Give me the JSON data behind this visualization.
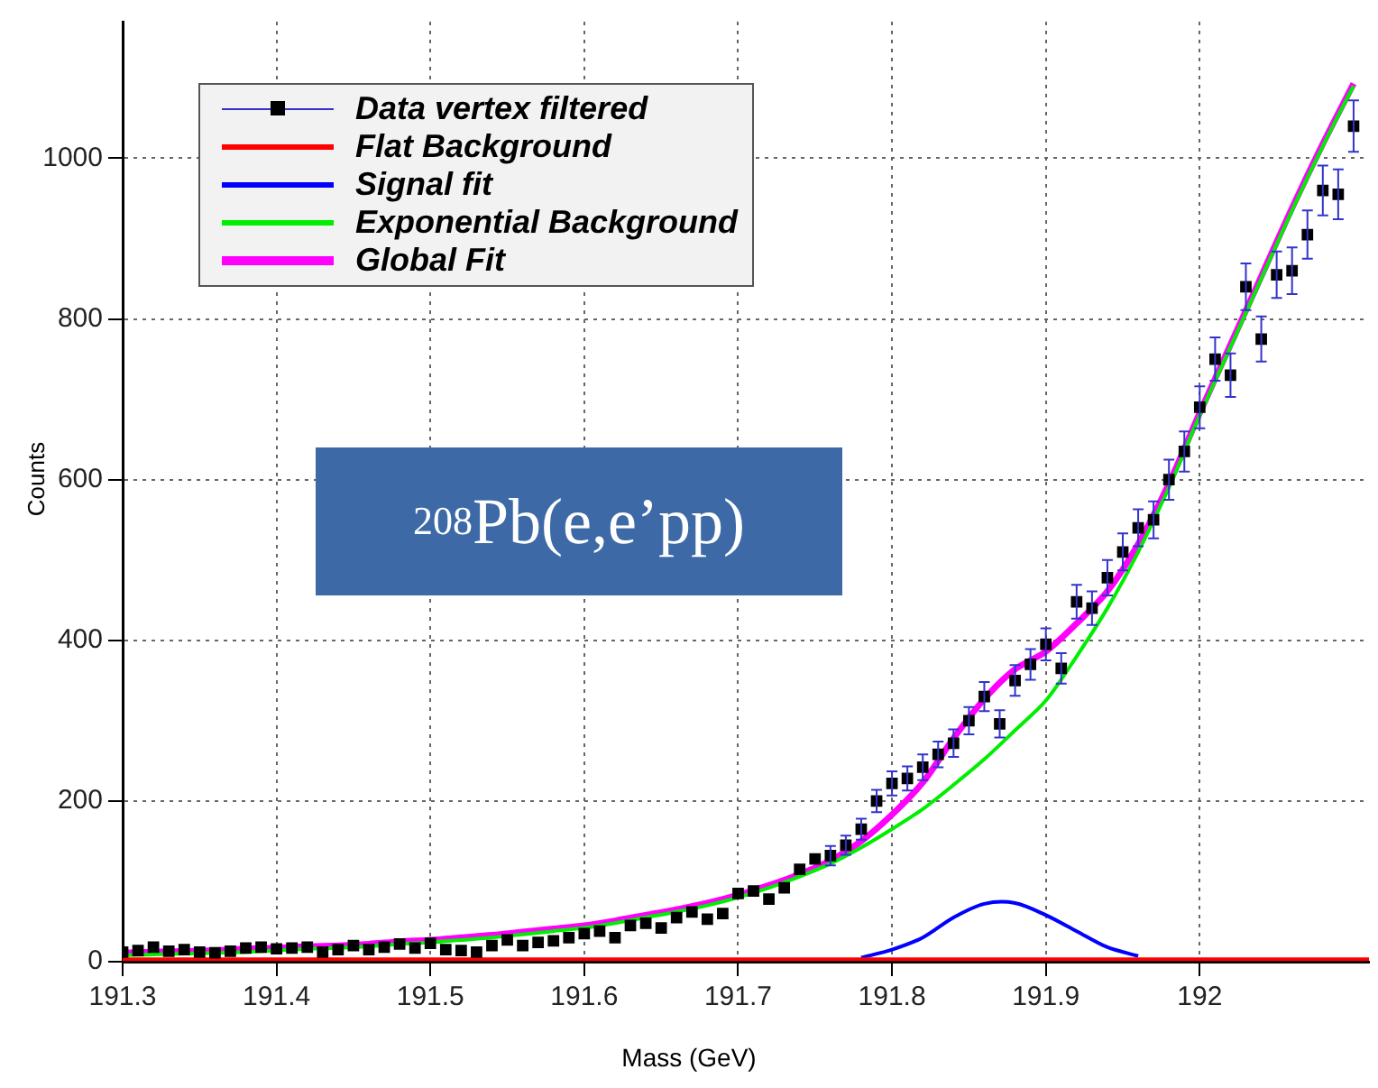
{
  "chart_data": {
    "type": "scatter",
    "xlabel": "Mass (GeV)",
    "ylabel": "Counts",
    "annotations": [
      "$^{208}$Pb(e,e’pp)"
    ],
    "xlim": [
      191.3,
      192.11
    ],
    "xticks": [
      191.3,
      191.4,
      191.5,
      191.6,
      191.7,
      191.8,
      191.9,
      192
    ],
    "ylim": [
      0,
      1170
    ],
    "yticks": [
      0,
      200,
      400,
      600,
      800,
      1000
    ],
    "grid": true,
    "legend": "top left",
    "series": [
      {
        "name": "Data vertex filtered",
        "marker": "square",
        "color": "#000000",
        "x": [
          191.3,
          191.31,
          191.32,
          191.33,
          191.34,
          191.35,
          191.36,
          191.37,
          191.38,
          191.39,
          191.4,
          191.41,
          191.42,
          191.43,
          191.44,
          191.45,
          191.46,
          191.47,
          191.48,
          191.49,
          191.5,
          191.51,
          191.52,
          191.53,
          191.54,
          191.55,
          191.56,
          191.57,
          191.58,
          191.59,
          191.6,
          191.61,
          191.62,
          191.63,
          191.64,
          191.65,
          191.66,
          191.67,
          191.68,
          191.69,
          191.7,
          191.71,
          191.72,
          191.73,
          191.74,
          191.75,
          191.76,
          191.77,
          191.78,
          191.79,
          191.8,
          191.81,
          191.82,
          191.83,
          191.84,
          191.85,
          191.86,
          191.87,
          191.88,
          191.89,
          191.9,
          191.91,
          191.92,
          191.93,
          191.94,
          191.95,
          191.96,
          191.97,
          191.98,
          191.99,
          192.0,
          192.01,
          192.02,
          192.03,
          192.04,
          192.05,
          192.06,
          192.07,
          192.08,
          192.09,
          192.1
        ],
        "values": [
          12,
          14,
          18,
          13,
          15,
          12,
          11,
          13,
          17,
          18,
          16,
          17,
          18,
          12,
          15,
          20,
          15,
          18,
          22,
          17,
          23,
          15,
          14,
          12,
          20,
          27,
          20,
          24,
          26,
          30,
          35,
          38,
          30,
          45,
          48,
          42,
          55,
          62,
          53,
          60,
          85,
          88,
          78,
          92,
          115,
          128,
          132,
          145,
          165,
          200,
          222,
          228,
          242,
          258,
          272,
          300,
          330,
          296,
          350,
          370,
          395,
          365,
          448,
          440,
          478,
          510,
          540,
          550,
          600,
          635,
          690,
          750,
          730,
          840,
          775,
          855,
          860,
          905,
          960,
          955,
          1040
        ],
        "errors": [
          null,
          null,
          null,
          null,
          null,
          null,
          null,
          null,
          null,
          null,
          null,
          null,
          null,
          null,
          null,
          null,
          null,
          null,
          null,
          null,
          null,
          null,
          null,
          null,
          null,
          null,
          null,
          null,
          null,
          null,
          null,
          null,
          null,
          null,
          null,
          null,
          null,
          null,
          null,
          null,
          null,
          null,
          null,
          null,
          null,
          null,
          12,
          12,
          13,
          14,
          15,
          15,
          16,
          16,
          17,
          17,
          18,
          17,
          19,
          19,
          20,
          19,
          21,
          21,
          22,
          23,
          23,
          23,
          25,
          25,
          26,
          27,
          27,
          29,
          28,
          29,
          29,
          30,
          31,
          31,
          32
        ]
      },
      {
        "name": "Flat Background",
        "type": "line",
        "color": "#ff0000",
        "x": [
          191.3,
          192.11
        ],
        "values": [
          3,
          3
        ]
      },
      {
        "name": "Signal fit",
        "type": "line",
        "color": "#0000ff",
        "x": [
          191.78,
          191.8,
          191.82,
          191.84,
          191.86,
          191.88,
          191.9,
          191.92,
          191.94,
          191.96
        ],
        "values": [
          5,
          15,
          30,
          55,
          72,
          73,
          58,
          38,
          18,
          7
        ]
      },
      {
        "name": "Exponential Background",
        "type": "line",
        "color": "#00ee00",
        "x": [
          191.3,
          191.32,
          191.34,
          191.36,
          191.38,
          191.4,
          191.42,
          191.44,
          191.46,
          191.48,
          191.5,
          191.52,
          191.54,
          191.56,
          191.58,
          191.6,
          191.62,
          191.64,
          191.66,
          191.68,
          191.7,
          191.72,
          191.74,
          191.76,
          191.78,
          191.8,
          191.82,
          191.84,
          191.86,
          191.88,
          191.9,
          191.92,
          191.94,
          191.96,
          191.98,
          192.0,
          192.02,
          192.04,
          192.06,
          192.08,
          192.1
        ],
        "values": [
          8,
          9,
          10,
          11,
          12,
          14,
          16,
          17,
          19,
          22,
          24,
          27,
          30,
          34,
          38,
          42,
          48,
          55,
          62,
          70,
          80,
          92,
          106,
          122,
          142,
          165,
          190,
          220,
          252,
          288,
          325,
          380,
          440,
          510,
          590,
          680,
          765,
          850,
          935,
          1015,
          1090
        ]
      },
      {
        "name": "Global Fit",
        "type": "line",
        "color": "#ff00ff",
        "x": [
          191.3,
          191.32,
          191.34,
          191.36,
          191.38,
          191.4,
          191.42,
          191.44,
          191.46,
          191.48,
          191.5,
          191.52,
          191.54,
          191.56,
          191.58,
          191.6,
          191.62,
          191.64,
          191.66,
          191.68,
          191.7,
          191.72,
          191.74,
          191.76,
          191.78,
          191.8,
          191.82,
          191.84,
          191.86,
          191.88,
          191.9,
          191.92,
          191.94,
          191.96,
          191.98,
          192.0,
          192.02,
          192.04,
          192.06,
          192.08,
          192.1
        ],
        "values": [
          11,
          12,
          13,
          14,
          16,
          17,
          19,
          20,
          22,
          25,
          27,
          30,
          33,
          37,
          41,
          45,
          51,
          58,
          65,
          73,
          83,
          95,
          109,
          126,
          150,
          183,
          223,
          278,
          327,
          364,
          386,
          421,
          461,
          520,
          595,
          683,
          768,
          853,
          938,
          1018,
          1093
        ]
      }
    ]
  }
}
